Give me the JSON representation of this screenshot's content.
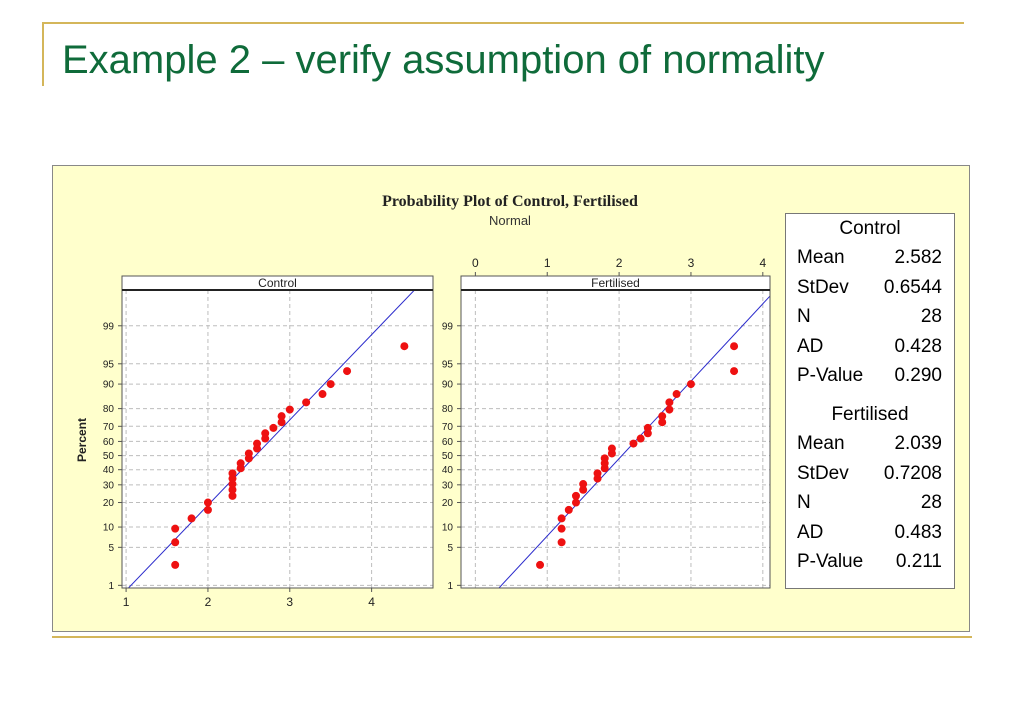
{
  "slide": {
    "title": "Example 2 – verify assumption of normality"
  },
  "colors": {
    "accent_rule": "#d4b65a",
    "title": "#0f6b3a",
    "panel_bg": "#ffffcc",
    "point": "#ee1111",
    "fit_line": "#2b2bcc"
  },
  "chart_data": {
    "type": "scatter",
    "title": "Probability Plot of Control, Fertilised",
    "subtitle": "Normal",
    "ylabel": "Percent",
    "y_scale": "normal-probability",
    "y_ticks": [
      1,
      5,
      10,
      20,
      30,
      40,
      50,
      60,
      70,
      80,
      90,
      95,
      99
    ],
    "grid": true,
    "legend": "right",
    "panels": [
      {
        "name": "Control",
        "xlim": [
          0.95,
          4.75
        ],
        "x_ticks": [
          1,
          2,
          3,
          4
        ],
        "x_tick_position": "bottom",
        "fit": {
          "mean": 2.582,
          "stdev": 0.6544
        },
        "points": [
          {
            "x": 1.6,
            "y": 2.5
          },
          {
            "x": 1.6,
            "y": 6.0
          },
          {
            "x": 1.6,
            "y": 9.5
          },
          {
            "x": 1.8,
            "y": 13.0
          },
          {
            "x": 2.0,
            "y": 16.5
          },
          {
            "x": 2.0,
            "y": 20.0
          },
          {
            "x": 2.3,
            "y": 23.5
          },
          {
            "x": 2.3,
            "y": 27.0
          },
          {
            "x": 2.3,
            "y": 30.5
          },
          {
            "x": 2.3,
            "y": 34.0
          },
          {
            "x": 2.3,
            "y": 37.5
          },
          {
            "x": 2.4,
            "y": 41.0
          },
          {
            "x": 2.4,
            "y": 44.5
          },
          {
            "x": 2.5,
            "y": 48.0
          },
          {
            "x": 2.5,
            "y": 51.5
          },
          {
            "x": 2.6,
            "y": 55.0
          },
          {
            "x": 2.6,
            "y": 58.5
          },
          {
            "x": 2.7,
            "y": 62.0
          },
          {
            "x": 2.7,
            "y": 65.5
          },
          {
            "x": 2.8,
            "y": 69.0
          },
          {
            "x": 2.9,
            "y": 72.5
          },
          {
            "x": 2.9,
            "y": 76.0
          },
          {
            "x": 3.0,
            "y": 79.5
          },
          {
            "x": 3.2,
            "y": 83.0
          },
          {
            "x": 3.4,
            "y": 86.5
          },
          {
            "x": 3.5,
            "y": 90.0
          },
          {
            "x": 3.7,
            "y": 93.5
          },
          {
            "x": 4.4,
            "y": 97.5
          }
        ]
      },
      {
        "name": "Fertilised",
        "xlim": [
          -0.2,
          4.1
        ],
        "x_ticks": [
          0,
          1,
          2,
          3,
          4
        ],
        "x_tick_position": "top",
        "fit": {
          "mean": 2.039,
          "stdev": 0.7208
        },
        "points": [
          {
            "x": 0.9,
            "y": 2.5
          },
          {
            "x": 1.2,
            "y": 6.0
          },
          {
            "x": 1.2,
            "y": 9.5
          },
          {
            "x": 1.2,
            "y": 13.0
          },
          {
            "x": 1.3,
            "y": 16.5
          },
          {
            "x": 1.4,
            "y": 20.0
          },
          {
            "x": 1.4,
            "y": 23.5
          },
          {
            "x": 1.5,
            "y": 27.0
          },
          {
            "x": 1.5,
            "y": 30.5
          },
          {
            "x": 1.7,
            "y": 34.0
          },
          {
            "x": 1.7,
            "y": 37.5
          },
          {
            "x": 1.8,
            "y": 41.0
          },
          {
            "x": 1.8,
            "y": 44.5
          },
          {
            "x": 1.8,
            "y": 48.0
          },
          {
            "x": 1.9,
            "y": 51.5
          },
          {
            "x": 1.9,
            "y": 55.0
          },
          {
            "x": 2.2,
            "y": 58.5
          },
          {
            "x": 2.3,
            "y": 62.0
          },
          {
            "x": 2.4,
            "y": 65.5
          },
          {
            "x": 2.4,
            "y": 69.0
          },
          {
            "x": 2.6,
            "y": 72.5
          },
          {
            "x": 2.6,
            "y": 76.0
          },
          {
            "x": 2.7,
            "y": 79.5
          },
          {
            "x": 2.7,
            "y": 83.0
          },
          {
            "x": 2.8,
            "y": 86.5
          },
          {
            "x": 3.0,
            "y": 90.0
          },
          {
            "x": 3.6,
            "y": 93.5
          },
          {
            "x": 3.6,
            "y": 97.5
          }
        ]
      }
    ]
  },
  "stats": [
    {
      "name": "Control",
      "rows": [
        {
          "label": "Mean",
          "value": "2.582"
        },
        {
          "label": "StDev",
          "value": "0.6544"
        },
        {
          "label": "N",
          "value": "28"
        },
        {
          "label": "AD",
          "value": "0.428"
        },
        {
          "label": "P-Value",
          "value": "0.290"
        }
      ]
    },
    {
      "name": "Fertilised",
      "rows": [
        {
          "label": "Mean",
          "value": "2.039"
        },
        {
          "label": "StDev",
          "value": "0.7208"
        },
        {
          "label": "N",
          "value": "28"
        },
        {
          "label": "AD",
          "value": "0.483"
        },
        {
          "label": "P-Value",
          "value": "0.211"
        }
      ]
    }
  ]
}
